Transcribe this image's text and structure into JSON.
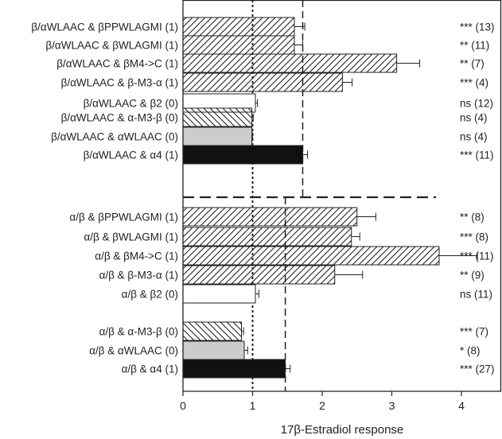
{
  "chart_data": {
    "type": "bar",
    "orientation": "horizontal",
    "xlabel": "17β-Estradiol response",
    "xlim": [
      0,
      4.6
    ],
    "xticks": [
      0,
      1,
      2,
      3,
      4
    ],
    "reference_lines": [
      {
        "value": 1.0,
        "style": "dotted"
      },
      {
        "value": 1.72,
        "style": "dashed",
        "group": "β/αWLAAC"
      },
      {
        "value": 1.47,
        "style": "dashed",
        "group": "α/β"
      }
    ],
    "group_separator": "dashed",
    "fill_legend": {
      "hatched": "diagonal hatch (/)",
      "reverse_hatched": "diagonal hatch (\\)",
      "white": "white",
      "gray": "light gray",
      "black": "black"
    },
    "bars": [
      {
        "label": "β/αWLAAC & βPPWLAGMI (1)",
        "value": 1.6,
        "error": 0.15,
        "significance": "*** (13)",
        "fill": "hatched",
        "group": "β/αWLAAC"
      },
      {
        "label": "β/αWLAAC & βWLAGMI (1)",
        "value": 1.6,
        "error": 0.12,
        "significance": "** (11)",
        "fill": "hatched",
        "group": "β/αWLAAC"
      },
      {
        "label": "β/αWLAAC & βM4->C (1)",
        "value": 3.07,
        "error": 0.33,
        "significance": "** (7)",
        "fill": "hatched",
        "group": "β/αWLAAC"
      },
      {
        "label": "β/αWLAAC & β-M3-α (1)",
        "value": 2.29,
        "error": 0.14,
        "significance": "*** (4)",
        "fill": "hatched",
        "group": "β/αWLAAC"
      },
      {
        "label": "β/αWLAAC & β2 (0)",
        "value": 1.04,
        "error": 0.03,
        "significance": "ns (12)",
        "fill": "white",
        "group": "β/αWLAAC"
      },
      {
        "label": "β/αWLAAC & α-M3-β (0)",
        "value": 0.99,
        "error": 0.02,
        "significance": "ns (4)",
        "fill": "reverse_hatched",
        "group": "β/αWLAAC"
      },
      {
        "label": "β/αWLAAC & αWLAAC (0)",
        "value": 0.99,
        "error": 0.01,
        "significance": "ns (4)",
        "fill": "gray",
        "group": "β/αWLAAC"
      },
      {
        "label": "β/αWLAAC & α4 (1)",
        "value": 1.72,
        "error": 0.07,
        "significance": "*** (11)",
        "fill": "black",
        "group": "β/αWLAAC"
      },
      {
        "label": "α/β & βPPWLAGMI (1)",
        "value": 2.5,
        "error": 0.27,
        "significance": "** (8)",
        "fill": "hatched",
        "group": "α/β"
      },
      {
        "label": "α/β & βWLAGMI (1)",
        "value": 2.42,
        "error": 0.12,
        "significance": "*** (8)",
        "fill": "hatched",
        "group": "α/β"
      },
      {
        "label": "α/β & βM4->C (1)",
        "value": 3.68,
        "error": 0.55,
        "significance": "*** (11)",
        "fill": "hatched",
        "group": "α/β"
      },
      {
        "label": "α/β & β-M3-α (1)",
        "value": 2.18,
        "error": 0.4,
        "significance": "** (9)",
        "fill": "hatched",
        "group": "α/β"
      },
      {
        "label": "α/β & β2 (0)",
        "value": 1.04,
        "error": 0.05,
        "significance": "ns (11)",
        "fill": "white",
        "group": "α/β"
      },
      {
        "label": "α/β & α-M3-β (0)",
        "value": 0.84,
        "error": 0.03,
        "significance": "*** (7)",
        "fill": "reverse_hatched",
        "group": "α/β"
      },
      {
        "label": "α/β & αWLAAC (0)",
        "value": 0.88,
        "error": 0.05,
        "significance": "* (8)",
        "fill": "gray",
        "group": "α/β"
      },
      {
        "label": "α/β & α4 (1)",
        "value": 1.47,
        "error": 0.07,
        "significance": "*** (27)",
        "fill": "black",
        "group": "α/β"
      }
    ]
  }
}
